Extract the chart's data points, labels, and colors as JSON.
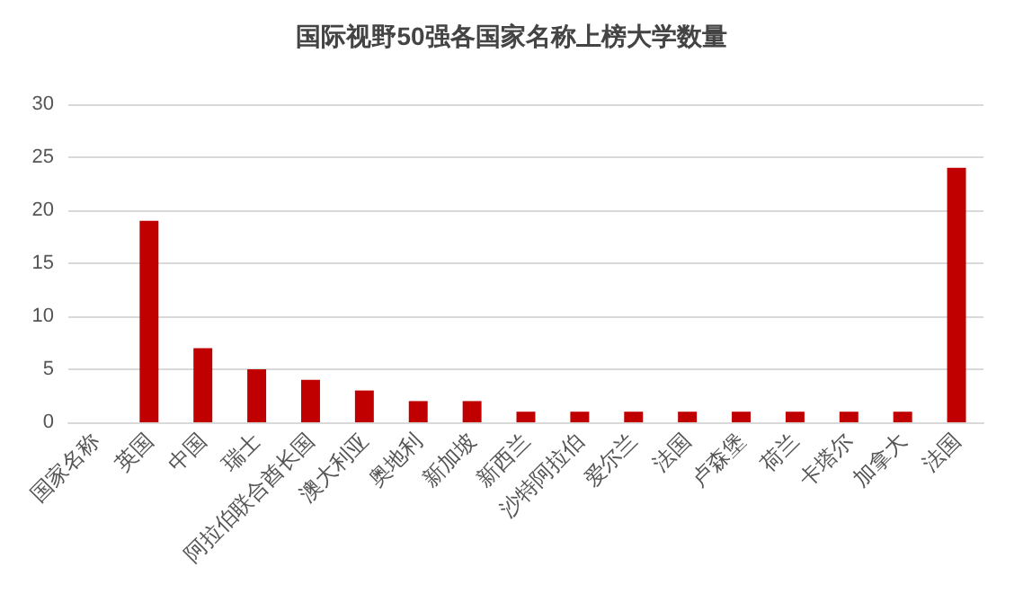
{
  "chart_data": {
    "type": "bar",
    "title": "国际视野50强各国家名称上榜大学数量",
    "categories": [
      "国家名称",
      "英国",
      "中国",
      "瑞士",
      "阿拉伯联合酋长国",
      "澳大利亚",
      "奥地利",
      "新加坡",
      "新西兰",
      "沙特阿拉伯",
      "爱尔兰",
      "法国",
      "卢森堡",
      "荷兰",
      "卡塔尔",
      "加拿大",
      "法国"
    ],
    "values": [
      null,
      19,
      7,
      5,
      4,
      3,
      2,
      2,
      1,
      1,
      1,
      1,
      1,
      1,
      1,
      1,
      24
    ],
    "color": "#c00000",
    "ylim": [
      0,
      30
    ],
    "yticks": [
      0,
      5,
      10,
      15,
      20,
      25,
      30
    ],
    "grid": "y"
  }
}
